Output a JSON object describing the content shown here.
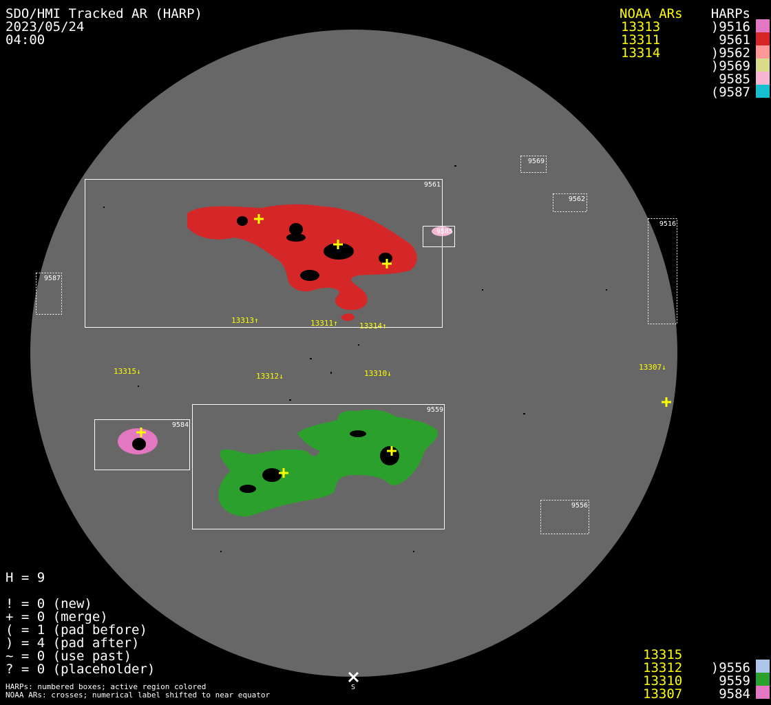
{
  "header": {
    "title": "SDO/HMI Tracked AR (HARP)",
    "date": "2023/05/24",
    "time": "04:00"
  },
  "legend_top": {
    "noaa_header": "NOAA ARs",
    "harp_header": "HARPs",
    "noaa": [
      "13313",
      "13311",
      "13314"
    ],
    "harps": [
      {
        "label": ")9516",
        "color": "#e377c2"
      },
      {
        "label": "9561",
        "color": "#d62728"
      },
      {
        "label": ")9562",
        "color": "#ff9896"
      },
      {
        "label": ")9569",
        "color": "#dbdb8d"
      },
      {
        "label": "9585",
        "color": "#f7b6d2"
      },
      {
        "label": "(9587",
        "color": "#17becf"
      }
    ]
  },
  "legend_bottom": {
    "noaa": [
      "13315",
      "13312",
      "13310",
      "13307"
    ],
    "harps": [
      {
        "label": ")9556",
        "color": "#aec7e8"
      },
      {
        "label": "9559",
        "color": "#2ca02c"
      },
      {
        "label": "9584",
        "color": "#e377c2"
      }
    ]
  },
  "stats": {
    "h": "H = 9",
    "lines": [
      "! = 0 (new)",
      "+ = 0 (merge)",
      "( = 1 (pad before)",
      ") = 4 (pad after)",
      "~ = 0 (use past)",
      "? = 0 (placeholder)"
    ]
  },
  "footnotes": [
    "HARPs: numbered boxes; active region colored",
    "NOAA ARs: crosses; numerical label shifted to near equator"
  ],
  "disk": {
    "south_label": "S",
    "harp_boxes": [
      "9561",
      "9569",
      "9562",
      "9585",
      "9516",
      "9587",
      "9584",
      "9559",
      "9556"
    ],
    "noaa_labels": [
      "13313↑",
      "13311↑",
      "13314↑",
      "13315↓",
      "13312↓",
      "13310↓",
      "13307↓"
    ]
  }
}
